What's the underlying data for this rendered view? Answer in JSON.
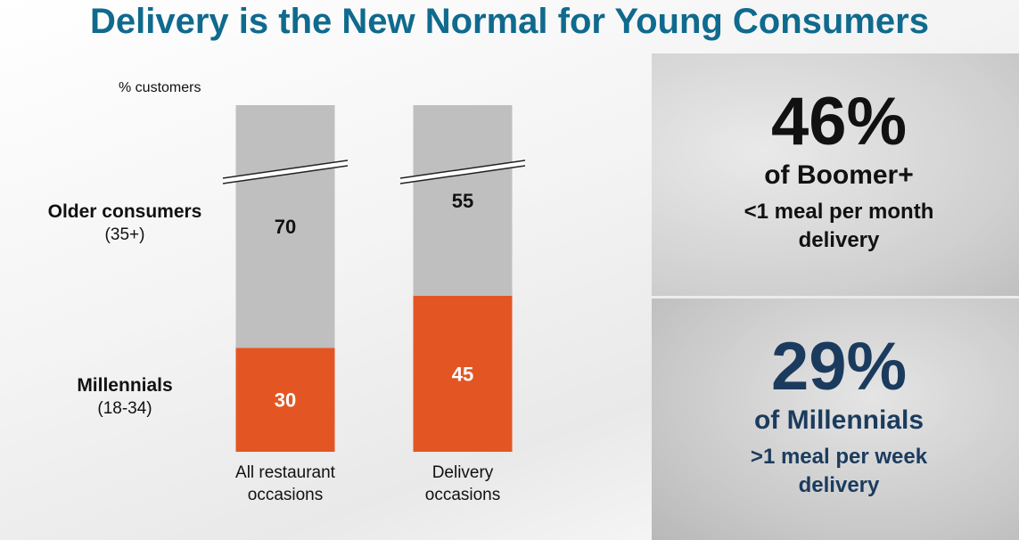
{
  "title": "Delivery is the New Normal for Young Consumers",
  "chart_data": {
    "type": "stacked-bar",
    "unit_label": "% customers",
    "categories": [
      "All restaurant occasions",
      "Delivery occasions"
    ],
    "series": [
      {
        "name": "Millennials",
        "age_range": "(18-34)",
        "color": "#e35623",
        "label_color": "#ffffff",
        "values": [
          30,
          45
        ]
      },
      {
        "name": "Older consumers",
        "age_range": "(35+)",
        "color": "#bfbfbf",
        "label_color": "#111111",
        "values": [
          70,
          55
        ]
      }
    ],
    "ylim": [
      0,
      100
    ],
    "axis_break": true
  },
  "callouts": [
    {
      "figure": "46%",
      "group": "of Boomer+",
      "detail": "<1 meal per month delivery",
      "color": "#111111"
    },
    {
      "figure": "29%",
      "group": "of Millennials",
      "detail": ">1 meal per week delivery",
      "color": "#1b3b5e"
    }
  ]
}
